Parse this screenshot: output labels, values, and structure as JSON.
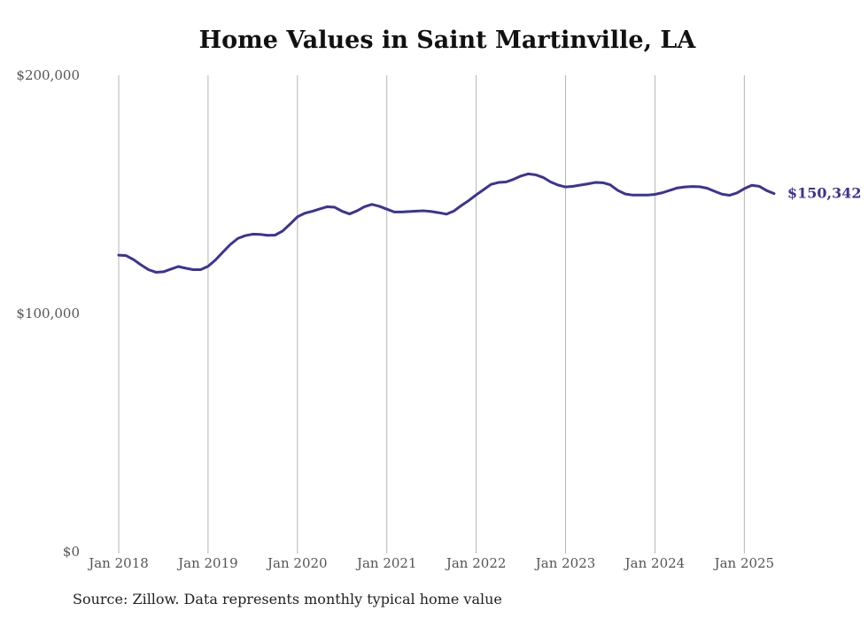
{
  "chart_data": {
    "type": "line",
    "title": "Home Values in Saint Martinville, LA",
    "xlabel": "",
    "ylabel": "",
    "ylim": [
      0,
      200000
    ],
    "y_ticks": [
      "$0",
      "$100,000",
      "$200,000"
    ],
    "y_tick_values": [
      0,
      100000,
      200000
    ],
    "x_ticks": [
      "Jan 2018",
      "Jan 2019",
      "Jan 2020",
      "Jan 2021",
      "Jan 2022",
      "Jan 2023",
      "Jan 2024",
      "Jan 2025"
    ],
    "x_tick_values": [
      "2018-01",
      "2019-01",
      "2020-01",
      "2021-01",
      "2022-01",
      "2023-01",
      "2024-01",
      "2025-01"
    ],
    "xlim": [
      "2018-01",
      "2025-05"
    ],
    "grid": "vertical lines at x ticks",
    "color": "#3b3494",
    "end_label": "$150,342",
    "series": [
      {
        "points": [
          [
            "2018-01",
            124500
          ],
          [
            "2018-02",
            124300
          ],
          [
            "2018-03",
            122600
          ],
          [
            "2018-04",
            120400
          ],
          [
            "2018-05",
            118400
          ],
          [
            "2018-06",
            117300
          ],
          [
            "2018-07",
            117500
          ],
          [
            "2018-08",
            118600
          ],
          [
            "2018-09",
            119700
          ],
          [
            "2018-10",
            119000
          ],
          [
            "2018-11",
            118400
          ],
          [
            "2018-12",
            118400
          ],
          [
            "2019-01",
            119800
          ],
          [
            "2019-02",
            122500
          ],
          [
            "2019-03",
            125800
          ],
          [
            "2019-04",
            129000
          ],
          [
            "2019-05",
            131500
          ],
          [
            "2019-06",
            132700
          ],
          [
            "2019-07",
            133300
          ],
          [
            "2019-08",
            133200
          ],
          [
            "2019-09",
            132800
          ],
          [
            "2019-10",
            132900
          ],
          [
            "2019-11",
            134600
          ],
          [
            "2019-12",
            137500
          ],
          [
            "2020-01",
            140600
          ],
          [
            "2020-02",
            142100
          ],
          [
            "2020-03",
            142900
          ],
          [
            "2020-04",
            143900
          ],
          [
            "2020-05",
            144800
          ],
          [
            "2020-06",
            144600
          ],
          [
            "2020-07",
            142900
          ],
          [
            "2020-08",
            141800
          ],
          [
            "2020-09",
            143100
          ],
          [
            "2020-10",
            144800
          ],
          [
            "2020-11",
            145800
          ],
          [
            "2020-12",
            145000
          ],
          [
            "2021-01",
            143800
          ],
          [
            "2021-02",
            142600
          ],
          [
            "2021-03",
            142600
          ],
          [
            "2021-04",
            142800
          ],
          [
            "2021-05",
            143000
          ],
          [
            "2021-06",
            143100
          ],
          [
            "2021-07",
            142800
          ],
          [
            "2021-08",
            142300
          ],
          [
            "2021-09",
            141700
          ],
          [
            "2021-10",
            143000
          ],
          [
            "2021-11",
            145300
          ],
          [
            "2021-12",
            147400
          ],
          [
            "2022-01",
            149800
          ],
          [
            "2022-02",
            152000
          ],
          [
            "2022-03",
            154200
          ],
          [
            "2022-04",
            155000
          ],
          [
            "2022-05",
            155200
          ],
          [
            "2022-06",
            156300
          ],
          [
            "2022-07",
            157700
          ],
          [
            "2022-08",
            158600
          ],
          [
            "2022-09",
            158200
          ],
          [
            "2022-10",
            157100
          ],
          [
            "2022-11",
            155200
          ],
          [
            "2022-12",
            153900
          ],
          [
            "2023-01",
            153100
          ],
          [
            "2023-02",
            153400
          ],
          [
            "2023-03",
            153900
          ],
          [
            "2023-04",
            154400
          ],
          [
            "2023-05",
            155000
          ],
          [
            "2023-06",
            154900
          ],
          [
            "2023-07",
            154000
          ],
          [
            "2023-08",
            151700
          ],
          [
            "2023-09",
            150200
          ],
          [
            "2023-10",
            149700
          ],
          [
            "2023-11",
            149700
          ],
          [
            "2023-12",
            149700
          ],
          [
            "2024-01",
            150000
          ],
          [
            "2024-02",
            150700
          ],
          [
            "2024-03",
            151700
          ],
          [
            "2024-04",
            152700
          ],
          [
            "2024-05",
            153100
          ],
          [
            "2024-06",
            153300
          ],
          [
            "2024-07",
            153200
          ],
          [
            "2024-08",
            152600
          ],
          [
            "2024-09",
            151300
          ],
          [
            "2024-10",
            150100
          ],
          [
            "2024-11",
            149600
          ],
          [
            "2024-12",
            150600
          ],
          [
            "2025-01",
            152400
          ],
          [
            "2025-02",
            153800
          ],
          [
            "2025-03",
            153400
          ],
          [
            "2025-04",
            151600
          ],
          [
            "2025-05",
            150342
          ]
        ]
      }
    ]
  },
  "footer": {
    "source": "Source: Zillow. Data represents monthly typical home value"
  }
}
